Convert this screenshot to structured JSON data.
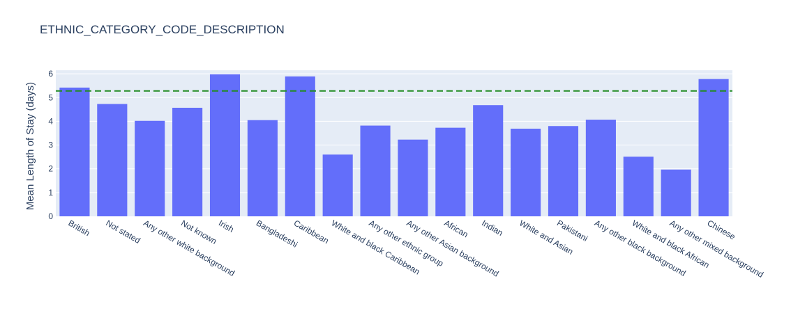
{
  "chart_data": {
    "type": "bar",
    "title": "ETHNIC_CATEGORY_CODE_DESCRIPTION",
    "xlabel": "",
    "ylabel": "Mean Length of Stay (days)",
    "ylim": [
      0,
      6.15
    ],
    "yticks": [
      0,
      1,
      2,
      3,
      4,
      5,
      6
    ],
    "categories": [
      "British",
      "Not stated",
      "Any other white background",
      "Not known",
      "Irish",
      "Bangladeshi",
      "Caribbean",
      "White and black Caribbean",
      "Any other ethnic group",
      "Any other Asian background",
      "African",
      "Indian",
      "White and Asian",
      "Pakistani",
      "Any other black background",
      "White and black African",
      "Any other mixed background",
      "Chinese"
    ],
    "values": [
      5.42,
      4.73,
      4.02,
      4.57,
      5.98,
      4.05,
      5.89,
      2.6,
      3.82,
      3.23,
      3.73,
      4.68,
      3.69,
      3.8,
      4.07,
      2.51,
      1.97,
      5.78
    ],
    "reference_line": {
      "y": 5.28,
      "style": "dashed",
      "color": "#228B22"
    },
    "bar_color": "#636efa",
    "plot_bg": "#e5ecf6",
    "grid": true,
    "legend": "none"
  }
}
